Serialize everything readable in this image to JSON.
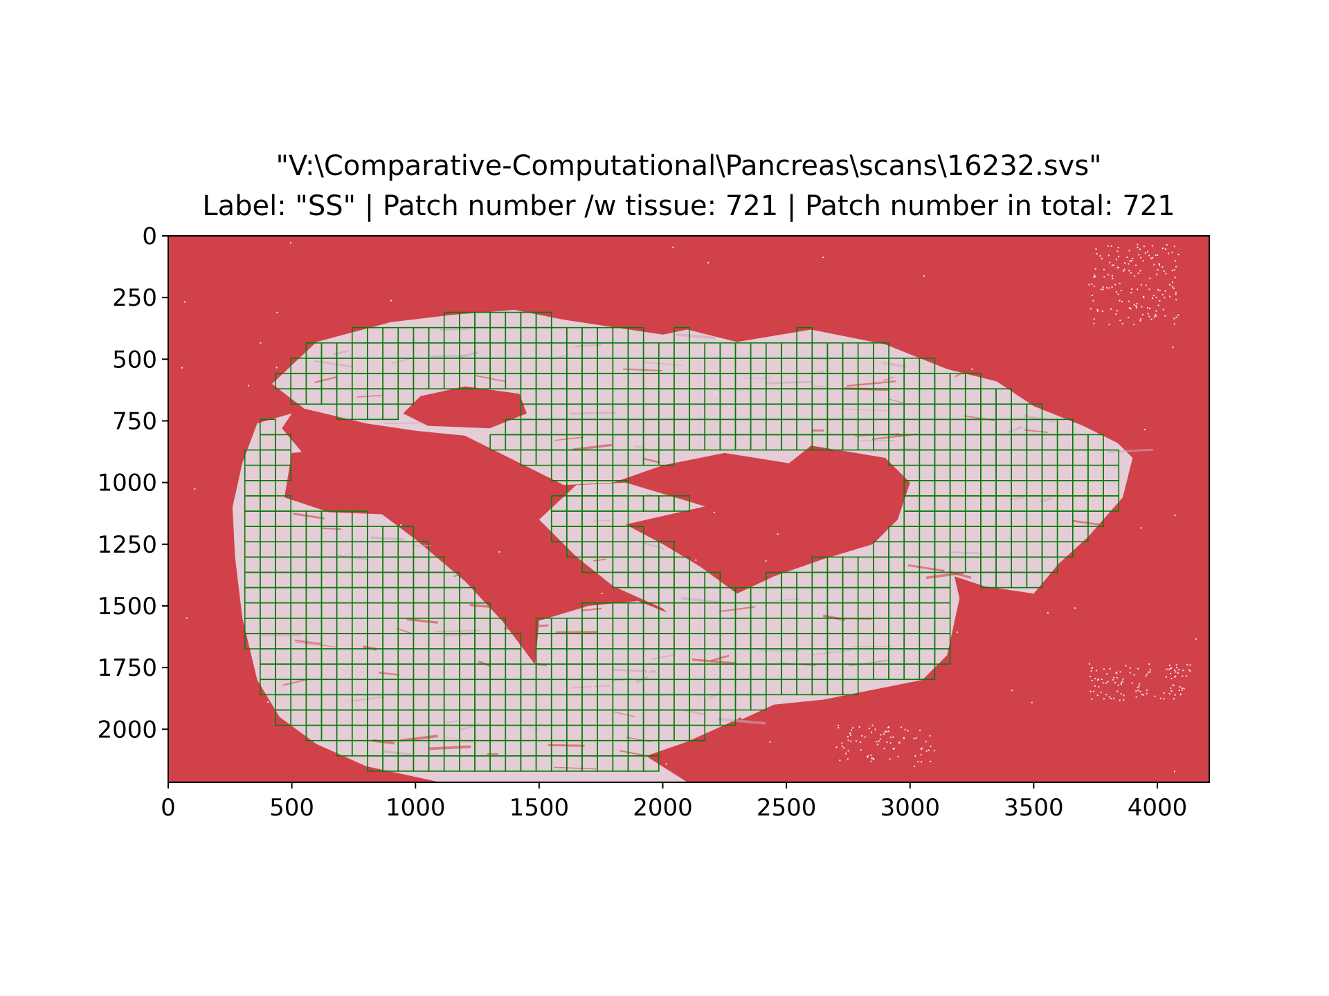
{
  "chart_data": {
    "type": "heatmap",
    "title": "\"V:\\Comparative-Computational\\Pancreas\\scans\\16232.svs\"",
    "subtitle": "Label: \"SS\" | Patch number /w tissue: 721 | Patch number in total: 721",
    "xlabel": "",
    "ylabel": "",
    "xlim": [
      0,
      4210
    ],
    "ylim": [
      2215,
      0
    ],
    "x_ticks": [
      0,
      500,
      1000,
      1500,
      2000,
      2500,
      3000,
      3500,
      4000
    ],
    "y_ticks": [
      0,
      250,
      500,
      750,
      1000,
      1250,
      1500,
      1750,
      2000
    ],
    "grid": false,
    "patch_size": 62,
    "colors": {
      "background": "#d0414a",
      "tissue": "#e4cdd6",
      "tissue_dark": "#c9a9bc",
      "patch_outline": "#0a7a0a",
      "speckle": "#f3e6ea"
    },
    "tissue_regions": [
      [
        [
          500,
          720
        ],
        [
          360,
          760
        ],
        [
          300,
          920
        ],
        [
          260,
          1100
        ],
        [
          270,
          1300
        ],
        [
          300,
          1550
        ],
        [
          360,
          1800
        ],
        [
          450,
          1950
        ],
        [
          600,
          2060
        ],
        [
          800,
          2150
        ],
        [
          1100,
          2215
        ],
        [
          2100,
          2215
        ],
        [
          1950,
          2120
        ],
        [
          1800,
          2000
        ],
        [
          1620,
          1900
        ],
        [
          1500,
          1760
        ],
        [
          1350,
          1560
        ],
        [
          1200,
          1400
        ],
        [
          1000,
          1230
        ],
        [
          760,
          1050
        ],
        [
          560,
          900
        ],
        [
          460,
          780
        ]
      ],
      [
        [
          420,
          600
        ],
        [
          600,
          430
        ],
        [
          900,
          350
        ],
        [
          1150,
          320
        ],
        [
          1400,
          300
        ],
        [
          1600,
          340
        ],
        [
          1800,
          370
        ],
        [
          2000,
          400
        ],
        [
          2100,
          380
        ],
        [
          2300,
          430
        ],
        [
          2600,
          380
        ],
        [
          2900,
          440
        ],
        [
          3150,
          540
        ],
        [
          3350,
          590
        ],
        [
          3500,
          690
        ],
        [
          3700,
          770
        ],
        [
          3840,
          840
        ],
        [
          3900,
          900
        ],
        [
          3860,
          1060
        ],
        [
          3720,
          1220
        ],
        [
          3600,
          1330
        ],
        [
          3500,
          1450
        ],
        [
          3300,
          1420
        ],
        [
          3120,
          1360
        ],
        [
          3000,
          1220
        ],
        [
          2900,
          1080
        ],
        [
          2700,
          980
        ],
        [
          2500,
          920
        ],
        [
          2250,
          880
        ],
        [
          2000,
          930
        ],
        [
          1800,
          1000
        ],
        [
          1600,
          1010
        ],
        [
          1380,
          900
        ],
        [
          1200,
          810
        ],
        [
          1000,
          790
        ],
        [
          800,
          760
        ],
        [
          550,
          700
        ]
      ],
      [
        [
          1650,
          1010
        ],
        [
          1850,
          1000
        ],
        [
          2050,
          1060
        ],
        [
          2250,
          1120
        ],
        [
          2500,
          1100
        ],
        [
          2750,
          1020
        ],
        [
          3000,
          1080
        ],
        [
          3150,
          1250
        ],
        [
          3200,
          1470
        ],
        [
          3150,
          1700
        ],
        [
          3050,
          1800
        ],
        [
          2850,
          1840
        ],
        [
          2650,
          1880
        ],
        [
          2450,
          1900
        ],
        [
          2320,
          1960
        ],
        [
          2250,
          1860
        ],
        [
          2150,
          1660
        ],
        [
          2000,
          1510
        ],
        [
          1800,
          1420
        ],
        [
          1650,
          1300
        ],
        [
          1500,
          1150
        ]
      ],
      [
        [
          1500,
          1560
        ],
        [
          1700,
          1500
        ],
        [
          1900,
          1480
        ],
        [
          2100,
          1560
        ],
        [
          2300,
          1640
        ],
        [
          2400,
          1760
        ],
        [
          2420,
          1880
        ],
        [
          2300,
          1960
        ],
        [
          2100,
          2050
        ],
        [
          1900,
          2120
        ],
        [
          1700,
          2100
        ],
        [
          1550,
          1960
        ],
        [
          1480,
          1780
        ]
      ]
    ],
    "holes": [
      [
        [
          1020,
          650
        ],
        [
          1200,
          610
        ],
        [
          1420,
          640
        ],
        [
          1450,
          720
        ],
        [
          1300,
          780
        ],
        [
          1050,
          770
        ],
        [
          950,
          720
        ]
      ],
      [
        [
          500,
          880
        ],
        [
          750,
          860
        ],
        [
          950,
          920
        ],
        [
          1150,
          1000
        ],
        [
          1300,
          1140
        ],
        [
          1150,
          1180
        ],
        [
          900,
          1130
        ],
        [
          650,
          1120
        ],
        [
          470,
          1060
        ]
      ],
      [
        [
          1850,
          1170
        ],
        [
          2200,
          1090
        ],
        [
          2450,
          970
        ],
        [
          2600,
          850
        ],
        [
          2900,
          900
        ],
        [
          3000,
          1000
        ],
        [
          2950,
          1150
        ],
        [
          2850,
          1250
        ],
        [
          2650,
          1310
        ],
        [
          2450,
          1380
        ],
        [
          2300,
          1450
        ],
        [
          2150,
          1340
        ],
        [
          2000,
          1250
        ]
      ]
    ]
  }
}
